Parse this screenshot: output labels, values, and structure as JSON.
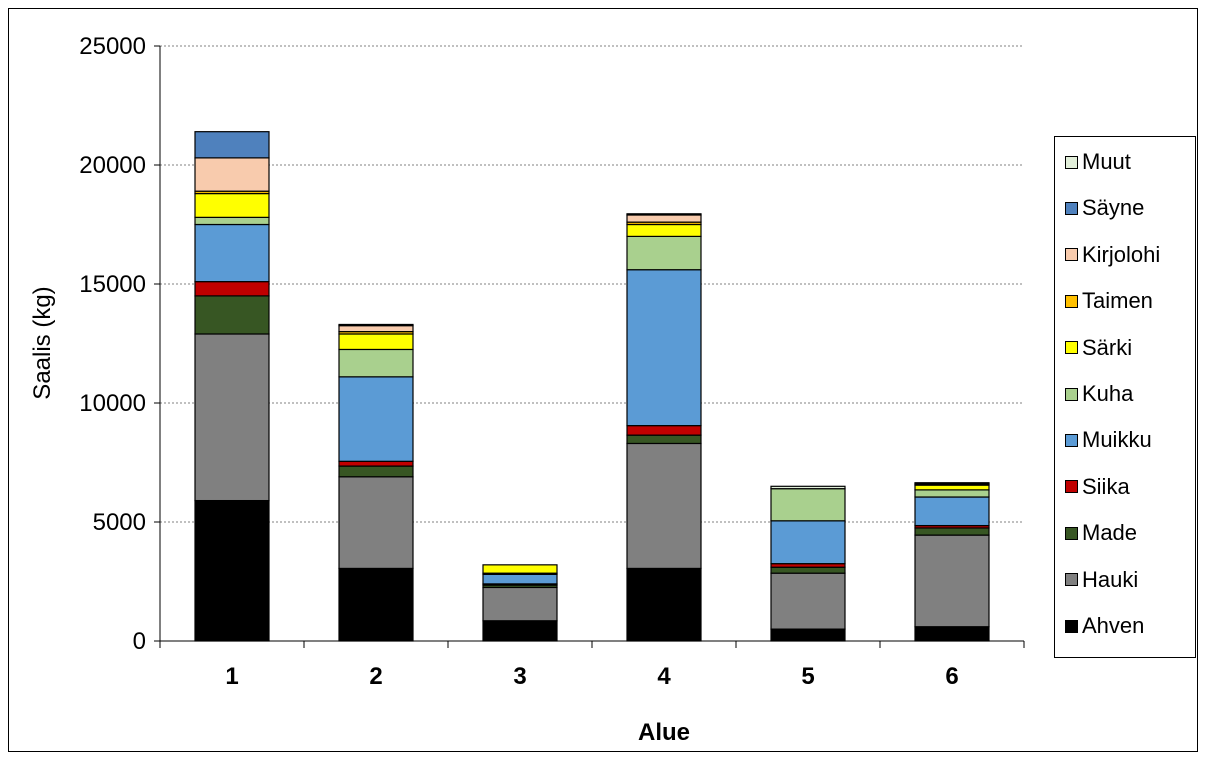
{
  "chart_data": {
    "type": "bar",
    "stacked": true,
    "xlabel": "Alue",
    "ylabel": "Saalis (kg)",
    "ylim": [
      0,
      25000
    ],
    "yticks": [
      "0",
      "5000",
      "10000",
      "15000",
      "20000",
      "25000"
    ],
    "categories": [
      "1",
      "2",
      "3",
      "4",
      "5",
      "6"
    ],
    "grid": "horizontal dotted",
    "legend_position": "right",
    "series": [
      {
        "name": "Ahven",
        "color": "#000000",
        "values": [
          5900,
          3050,
          850,
          3050,
          500,
          600
        ]
      },
      {
        "name": "Hauki",
        "color": "#808080",
        "values": [
          7000,
          3850,
          1400,
          5250,
          2350,
          3850
        ]
      },
      {
        "name": "Made",
        "color": "#375623",
        "values": [
          1600,
          450,
          100,
          350,
          250,
          300
        ]
      },
      {
        "name": "Siika",
        "color": "#c00000",
        "values": [
          600,
          200,
          50,
          400,
          150,
          100
        ]
      },
      {
        "name": "Muikku",
        "color": "#5b9bd5",
        "values": [
          2400,
          3550,
          400,
          6550,
          1800,
          1200
        ]
      },
      {
        "name": "Kuha",
        "color": "#a9d08e",
        "values": [
          300,
          1150,
          50,
          1400,
          1350,
          300
        ]
      },
      {
        "name": "Särki",
        "color": "#ffff00",
        "values": [
          1000,
          650,
          350,
          500,
          0,
          200
        ]
      },
      {
        "name": "Taimen",
        "color": "#ffc000",
        "values": [
          100,
          100,
          0,
          100,
          0,
          50
        ]
      },
      {
        "name": "Kirjolohi",
        "color": "#f8cbad",
        "values": [
          1400,
          250,
          0,
          300,
          0,
          0
        ]
      },
      {
        "name": "Säyne",
        "color": "#4f81bd",
        "values": [
          1100,
          0,
          0,
          50,
          0,
          0
        ]
      },
      {
        "name": "Muut",
        "color": "#e2efda",
        "values": [
          0,
          50,
          0,
          0,
          100,
          50
        ]
      }
    ]
  }
}
